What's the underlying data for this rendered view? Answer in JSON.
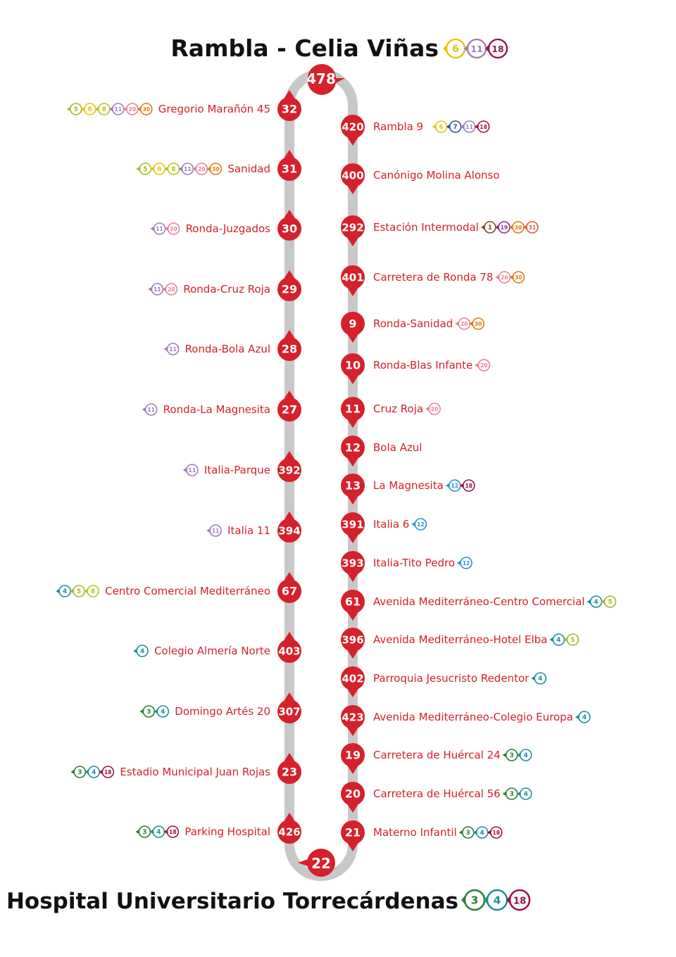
{
  "terminals": {
    "top": {
      "name": "Rambla - Celia Viñas",
      "lines": [
        "6",
        "11",
        "18"
      ]
    },
    "bottom": {
      "name": "Hospital Universitario Torrecárdenas",
      "lines": [
        "3",
        "4",
        "18"
      ]
    }
  },
  "line_colors": {
    "1": "#7a4a18",
    "3": "#2e7d32",
    "4": "#1a8f9a",
    "5": "#a9b81e",
    "6": "#e8c400",
    "7": "#2f4f9a",
    "8": "#b7c41c",
    "11": "#9b7cc0",
    "12": "#2196c8",
    "18": "#a01040",
    "19": "#8e2a8e",
    "20": "#e97e9a",
    "30": "#e07a10",
    "31": "#e05a40"
  },
  "route_color": "#d6202a",
  "loop": {
    "top_stop": "478",
    "bottom_stop": "22"
  },
  "left_stops": [
    {
      "num": "32",
      "name": "Gregorio Marañón 45",
      "lines": [
        "5",
        "6",
        "8",
        "11",
        "20",
        "30"
      ]
    },
    {
      "num": "31",
      "name": "Sanidad",
      "lines": [
        "5",
        "6",
        "8",
        "11",
        "20",
        "30"
      ]
    },
    {
      "num": "30",
      "name": "Ronda-Juzgados",
      "lines": [
        "11",
        "20"
      ]
    },
    {
      "num": "29",
      "name": "Ronda-Cruz Roja",
      "lines": [
        "11",
        "20"
      ]
    },
    {
      "num": "28",
      "name": "Ronda-Bola Azul",
      "lines": [
        "11"
      ]
    },
    {
      "num": "27",
      "name": "Ronda-La Magnesita",
      "lines": [
        "11"
      ]
    },
    {
      "num": "392",
      "name": "Italia-Parque",
      "lines": [
        "11"
      ]
    },
    {
      "num": "394",
      "name": "Italia 11",
      "lines": [
        "11"
      ]
    },
    {
      "num": "67",
      "name": "Centro Comercial Mediterráneo",
      "lines": [
        "4",
        "5",
        "8"
      ]
    },
    {
      "num": "403",
      "name": "Colegio Almería Norte",
      "lines": [
        "4"
      ]
    },
    {
      "num": "307",
      "name": "Domingo Artés 20",
      "lines": [
        "3",
        "4"
      ]
    },
    {
      "num": "23",
      "name": "Estadio Municipal Juan Rojas",
      "lines": [
        "3",
        "4",
        "18"
      ]
    },
    {
      "num": "426",
      "name": "Parking Hospital",
      "lines": [
        "3",
        "4",
        "18"
      ]
    }
  ],
  "right_stops": [
    {
      "num": "420",
      "name": "Rambla 9",
      "lines": [
        "6",
        "7",
        "11",
        "18"
      ]
    },
    {
      "num": "400",
      "name": "Canónigo Molina Alonso",
      "lines": []
    },
    {
      "num": "292",
      "name": "Estación Intermodal",
      "lines": [
        "1",
        "19",
        "30",
        "31"
      ]
    },
    {
      "num": "401",
      "name": "Carretera de Ronda 78",
      "lines": [
        "20",
        "30"
      ]
    },
    {
      "num": "9",
      "name": "Ronda-Sanidad",
      "lines": [
        "20",
        "30"
      ]
    },
    {
      "num": "10",
      "name": "Ronda-Blas Infante",
      "lines": [
        "20"
      ]
    },
    {
      "num": "11",
      "name": "Cruz Roja",
      "lines": [
        "20"
      ]
    },
    {
      "num": "12",
      "name": "Bola Azul",
      "lines": []
    },
    {
      "num": "13",
      "name": "La Magnesita",
      "lines": [
        "12",
        "18"
      ]
    },
    {
      "num": "391",
      "name": "Italia 6",
      "lines": [
        "12"
      ]
    },
    {
      "num": "393",
      "name": "Italia-Tito Pedro",
      "lines": [
        "12"
      ]
    },
    {
      "num": "61",
      "name": "Avenida Mediterráneo-Centro Comercial",
      "lines": [
        "4",
        "5"
      ]
    },
    {
      "num": "396",
      "name": "Avenida Mediterráneo-Hotel Elba",
      "lines": [
        "4",
        "5"
      ]
    },
    {
      "num": "402",
      "name": "Parroquia Jesucristo Redentor",
      "lines": [
        "4"
      ]
    },
    {
      "num": "423",
      "name": "Avenida Mediterráneo-Colegio Europa",
      "lines": [
        "4"
      ]
    },
    {
      "num": "19",
      "name": "Carretera de Huércal 24",
      "lines": [
        "3",
        "4"
      ]
    },
    {
      "num": "20",
      "name": "Carretera de Huércal 56",
      "lines": [
        "3",
        "4"
      ]
    },
    {
      "num": "21",
      "name": "Materno Infantil",
      "lines": [
        "3",
        "4",
        "18"
      ]
    }
  ]
}
